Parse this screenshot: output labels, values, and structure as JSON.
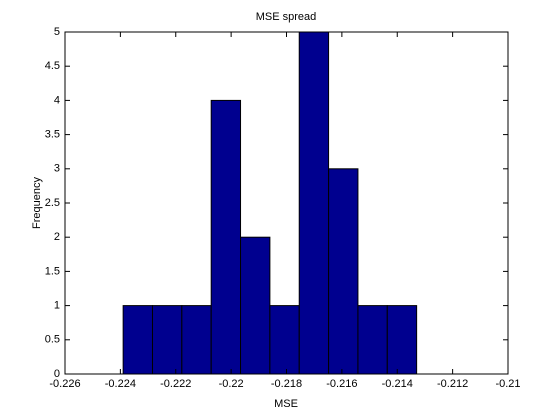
{
  "chart_data": {
    "type": "histogram",
    "title": "MSE spread",
    "x_label": "MSE",
    "y_label": "Frequency",
    "bins": [
      -0.2239,
      -0.22284,
      -0.22178,
      -0.22072,
      -0.21966,
      -0.2186,
      -0.21754,
      -0.21648,
      -0.21542,
      -0.21436,
      -0.2133
    ],
    "values": [
      1,
      1,
      1,
      4,
      2,
      1,
      5,
      3,
      1,
      1
    ],
    "color": "#00008f",
    "xlim": [
      -0.226,
      -0.21
    ],
    "xticks": [
      -0.226,
      -0.224,
      -0.222,
      -0.22,
      -0.218,
      -0.216,
      -0.214,
      -0.212,
      -0.21
    ],
    "ylim": [
      0,
      5
    ],
    "yticks": [
      0,
      0.5,
      1,
      1.5,
      2,
      2.5,
      3,
      3.5,
      4,
      4.5,
      5
    ]
  }
}
